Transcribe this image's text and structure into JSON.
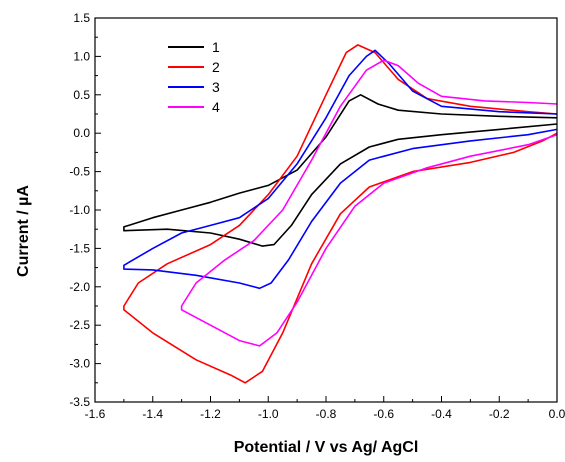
{
  "chart_data": {
    "type": "line",
    "xlabel": "Potential / V vs Ag/ AgCl",
    "ylabel": "Current / µA",
    "xlim": [
      -1.6,
      0.0
    ],
    "ylim": [
      -3.5,
      1.5
    ],
    "xticks": [
      -1.6,
      -1.4,
      -1.2,
      -1.0,
      -0.8,
      -0.6,
      -0.4,
      -0.2,
      0.0
    ],
    "xtick_labels": [
      "-1.6",
      "-1.4",
      "-1.2",
      "-1.0",
      "-0.8",
      "-0.6",
      "-0.4",
      "-0.2",
      "0.0"
    ],
    "yticks": [
      -3.5,
      -3.0,
      -2.5,
      -2.0,
      -1.5,
      -1.0,
      -0.5,
      0.0,
      0.5,
      1.0,
      1.5
    ],
    "ytick_labels": [
      "-3.5",
      "-3.0",
      "-2.5",
      "-2.0",
      "-1.5",
      "-1.0",
      "-0.5",
      "0.0",
      "0.5",
      "1.0",
      "1.5"
    ],
    "grid": false,
    "legend_position": "top-left",
    "series": [
      {
        "name": "1",
        "color": "#000000",
        "points": [
          [
            0.0,
            0.12
          ],
          [
            -0.2,
            0.05
          ],
          [
            -0.4,
            -0.02
          ],
          [
            -0.55,
            -0.08
          ],
          [
            -0.65,
            -0.18
          ],
          [
            -0.75,
            -0.4
          ],
          [
            -0.85,
            -0.8
          ],
          [
            -0.92,
            -1.2
          ],
          [
            -0.98,
            -1.45
          ],
          [
            -1.02,
            -1.47
          ],
          [
            -1.1,
            -1.38
          ],
          [
            -1.2,
            -1.3
          ],
          [
            -1.35,
            -1.25
          ],
          [
            -1.5,
            -1.27
          ],
          [
            -1.5,
            -1.22
          ],
          [
            -1.4,
            -1.1
          ],
          [
            -1.3,
            -1.0
          ],
          [
            -1.2,
            -0.9
          ],
          [
            -1.1,
            -0.78
          ],
          [
            -1.0,
            -0.68
          ],
          [
            -0.9,
            -0.48
          ],
          [
            -0.8,
            -0.05
          ],
          [
            -0.72,
            0.42
          ],
          [
            -0.68,
            0.5
          ],
          [
            -0.62,
            0.38
          ],
          [
            -0.55,
            0.3
          ],
          [
            -0.4,
            0.25
          ],
          [
            -0.2,
            0.22
          ],
          [
            0.0,
            0.2
          ]
        ]
      },
      {
        "name": "2",
        "color": "#ff0000",
        "points": [
          [
            0.0,
            0.0
          ],
          [
            -0.05,
            -0.1
          ],
          [
            -0.15,
            -0.25
          ],
          [
            -0.3,
            -0.38
          ],
          [
            -0.5,
            -0.5
          ],
          [
            -0.65,
            -0.7
          ],
          [
            -0.75,
            -1.05
          ],
          [
            -0.85,
            -1.7
          ],
          [
            -0.95,
            -2.6
          ],
          [
            -1.02,
            -3.1
          ],
          [
            -1.08,
            -3.25
          ],
          [
            -1.13,
            -3.15
          ],
          [
            -1.25,
            -2.95
          ],
          [
            -1.4,
            -2.6
          ],
          [
            -1.5,
            -2.3
          ],
          [
            -1.5,
            -2.25
          ],
          [
            -1.45,
            -1.95
          ],
          [
            -1.35,
            -1.7
          ],
          [
            -1.2,
            -1.45
          ],
          [
            -1.1,
            -1.2
          ],
          [
            -1.0,
            -0.8
          ],
          [
            -0.9,
            -0.3
          ],
          [
            -0.8,
            0.5
          ],
          [
            -0.73,
            1.05
          ],
          [
            -0.69,
            1.15
          ],
          [
            -0.63,
            1.05
          ],
          [
            -0.55,
            0.7
          ],
          [
            -0.45,
            0.45
          ],
          [
            -0.3,
            0.35
          ],
          [
            -0.1,
            0.28
          ],
          [
            0.0,
            0.25
          ]
        ]
      },
      {
        "name": "3",
        "color": "#0000ff",
        "points": [
          [
            0.0,
            0.05
          ],
          [
            -0.1,
            -0.02
          ],
          [
            -0.3,
            -0.1
          ],
          [
            -0.5,
            -0.2
          ],
          [
            -0.65,
            -0.35
          ],
          [
            -0.75,
            -0.65
          ],
          [
            -0.85,
            -1.15
          ],
          [
            -0.93,
            -1.65
          ],
          [
            -0.99,
            -1.95
          ],
          [
            -1.03,
            -2.02
          ],
          [
            -1.1,
            -1.95
          ],
          [
            -1.25,
            -1.85
          ],
          [
            -1.4,
            -1.78
          ],
          [
            -1.5,
            -1.77
          ],
          [
            -1.5,
            -1.72
          ],
          [
            -1.4,
            -1.5
          ],
          [
            -1.3,
            -1.3
          ],
          [
            -1.2,
            -1.2
          ],
          [
            -1.1,
            -1.1
          ],
          [
            -1.0,
            -0.85
          ],
          [
            -0.9,
            -0.4
          ],
          [
            -0.8,
            0.2
          ],
          [
            -0.72,
            0.75
          ],
          [
            -0.66,
            1.0
          ],
          [
            -0.63,
            1.08
          ],
          [
            -0.58,
            0.9
          ],
          [
            -0.5,
            0.55
          ],
          [
            -0.4,
            0.35
          ],
          [
            -0.2,
            0.28
          ],
          [
            0.0,
            0.25
          ]
        ]
      },
      {
        "name": "4",
        "color": "#ff00ff",
        "points": [
          [
            0.0,
            -0.02
          ],
          [
            -0.1,
            -0.15
          ],
          [
            -0.3,
            -0.3
          ],
          [
            -0.45,
            -0.45
          ],
          [
            -0.6,
            -0.65
          ],
          [
            -0.7,
            -0.95
          ],
          [
            -0.8,
            -1.5
          ],
          [
            -0.9,
            -2.2
          ],
          [
            -0.97,
            -2.6
          ],
          [
            -1.03,
            -2.77
          ],
          [
            -1.1,
            -2.7
          ],
          [
            -1.2,
            -2.5
          ],
          [
            -1.3,
            -2.3
          ],
          [
            -1.3,
            -2.25
          ],
          [
            -1.25,
            -1.95
          ],
          [
            -1.15,
            -1.65
          ],
          [
            -1.05,
            -1.4
          ],
          [
            -0.95,
            -1.0
          ],
          [
            -0.85,
            -0.35
          ],
          [
            -0.75,
            0.35
          ],
          [
            -0.66,
            0.82
          ],
          [
            -0.6,
            0.95
          ],
          [
            -0.55,
            0.88
          ],
          [
            -0.48,
            0.65
          ],
          [
            -0.4,
            0.48
          ],
          [
            -0.25,
            0.42
          ],
          [
            -0.1,
            0.4
          ],
          [
            0.0,
            0.38
          ]
        ]
      }
    ]
  }
}
